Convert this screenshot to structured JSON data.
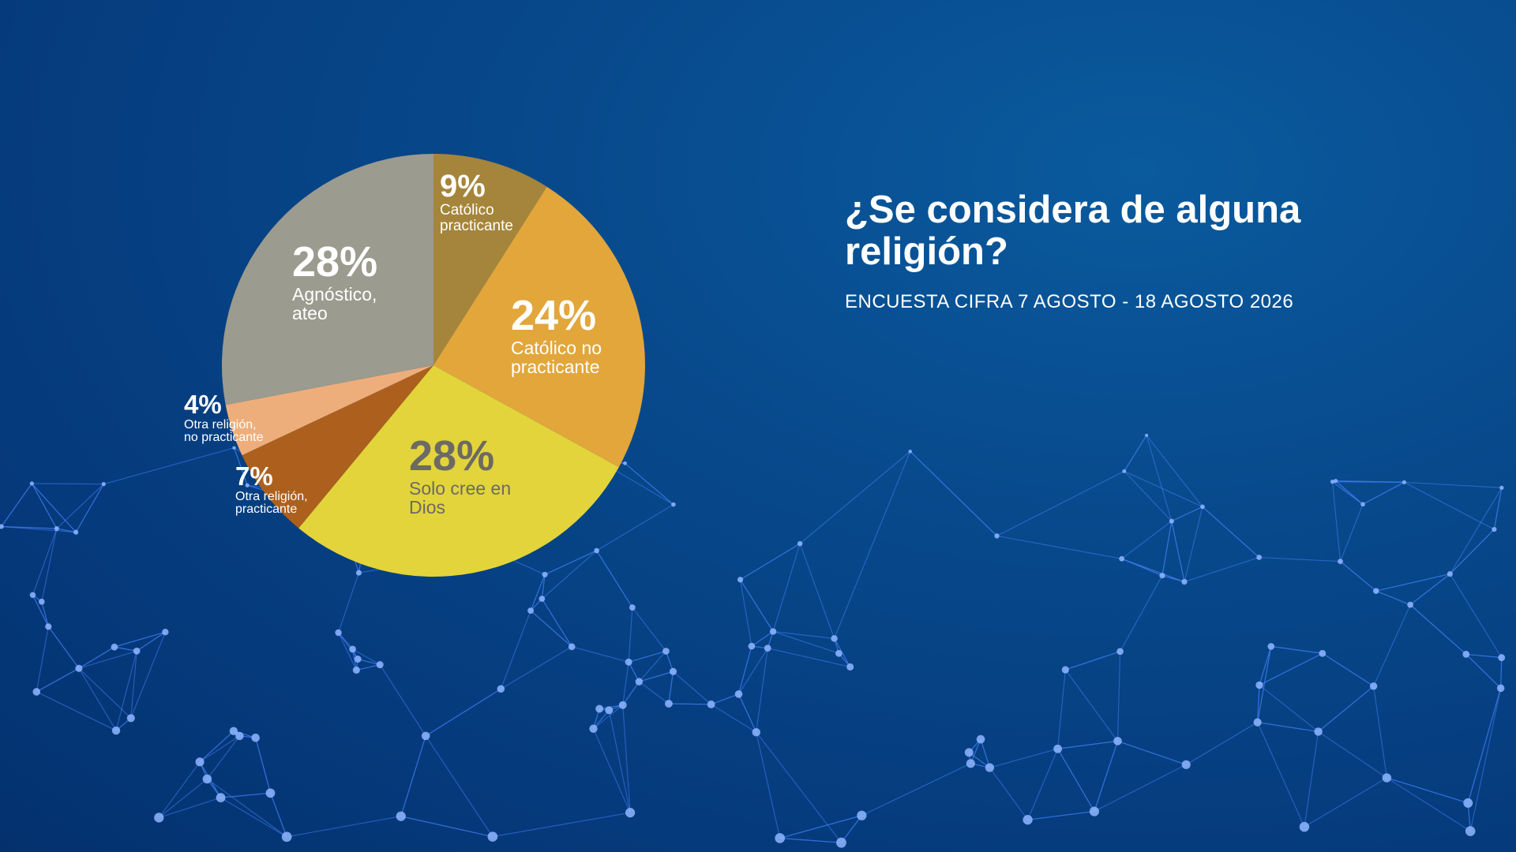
{
  "chart_data": {
    "type": "pie",
    "title": "¿Se considera de alguna religión?",
    "subtitle": "ENCUESTA CIFRA 7 AGOSTO - 18 AGOSTO 2026",
    "categories": [
      "Católico practicante",
      "Católico no practicante",
      "Solo cree en Dios",
      "Otra religión, practicante",
      "Otra religión, no practicante",
      "Agnóstico, ateo"
    ],
    "values": [
      9,
      24,
      28,
      7,
      4,
      28
    ],
    "value_labels": [
      "9%",
      "24%",
      "28%",
      "7%",
      "4%",
      "28%"
    ],
    "colors": [
      "#a5853b",
      "#e2a63b",
      "#e2d43a",
      "#ad601d",
      "#eeae7b",
      "#9b9b8f"
    ]
  }
}
